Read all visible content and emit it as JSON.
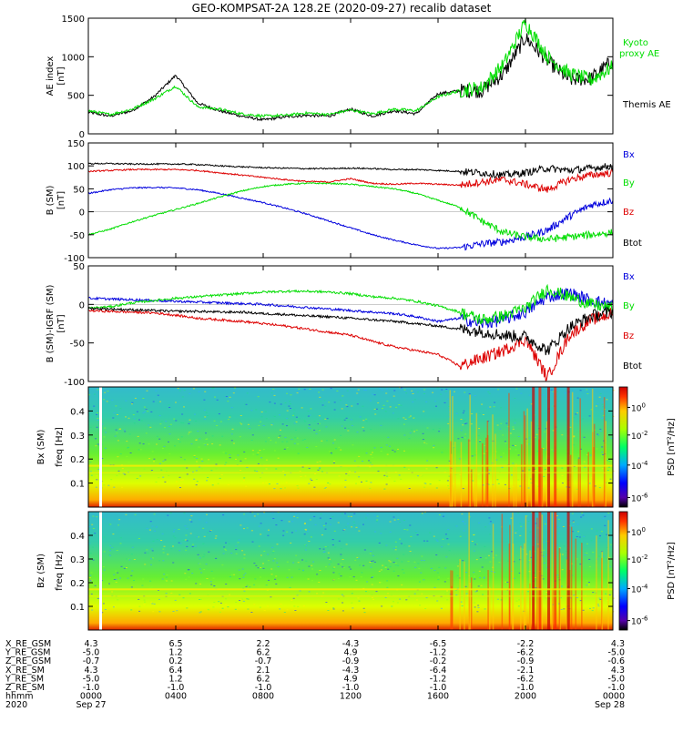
{
  "title": "GEO-KOMPSAT-2A 128.2E (2020-09-27) recalib dataset",
  "chart_data": [
    {
      "type": "line",
      "ylabel": "AE index [nT]",
      "ylim": [
        0,
        1500
      ],
      "yticks": [
        0,
        500,
        1000,
        1500
      ],
      "x_hours": [
        0,
        1,
        2,
        3,
        4,
        5,
        6,
        7,
        8,
        9,
        10,
        11,
        12,
        13,
        14,
        15,
        16,
        17,
        18,
        19,
        20,
        21,
        22,
        23,
        24
      ],
      "series": [
        {
          "name": "Themis AE",
          "color": "#000000",
          "values": [
            280,
            230,
            300,
            480,
            760,
            400,
            300,
            230,
            180,
            220,
            240,
            230,
            320,
            230,
            300,
            260,
            520,
            560,
            560,
            780,
            1250,
            950,
            700,
            720,
            950
          ]
        },
        {
          "name": "Kyoto proxy AE",
          "color": "#00dd00",
          "values": [
            300,
            250,
            320,
            450,
            620,
            350,
            320,
            260,
            230,
            240,
            270,
            250,
            310,
            260,
            320,
            300,
            480,
            560,
            600,
            900,
            1450,
            1000,
            780,
            700,
            870
          ]
        }
      ]
    },
    {
      "type": "line",
      "ylabel": "B (SM) [nT]",
      "ylim": [
        -100,
        150
      ],
      "yticks": [
        -100,
        -50,
        0,
        50,
        100,
        150
      ],
      "x_hours": [
        0,
        1,
        2,
        3,
        4,
        5,
        6,
        7,
        8,
        9,
        10,
        11,
        12,
        13,
        14,
        15,
        16,
        17,
        18,
        19,
        20,
        21,
        22,
        23,
        24
      ],
      "series": [
        {
          "name": "Bx",
          "color": "#0000dd",
          "values": [
            40,
            48,
            52,
            53,
            52,
            48,
            40,
            30,
            20,
            8,
            -5,
            -20,
            -35,
            -50,
            -62,
            -72,
            -80,
            -78,
            -70,
            -65,
            -55,
            -40,
            -10,
            15,
            25
          ]
        },
        {
          "name": "By",
          "color": "#00dd00",
          "values": [
            -50,
            -38,
            -22,
            -8,
            5,
            18,
            32,
            45,
            55,
            60,
            62,
            62,
            60,
            55,
            50,
            40,
            25,
            10,
            -20,
            -45,
            -55,
            -60,
            -55,
            -50,
            -45
          ]
        },
        {
          "name": "Bz",
          "color": "#dd0000",
          "values": [
            88,
            90,
            92,
            92,
            92,
            90,
            85,
            80,
            75,
            70,
            66,
            65,
            72,
            62,
            60,
            62,
            60,
            58,
            65,
            70,
            60,
            48,
            70,
            80,
            85
          ]
        },
        {
          "name": "Btot",
          "color": "#000000",
          "values": [
            105,
            105,
            104,
            104,
            104,
            103,
            100,
            98,
            96,
            95,
            94,
            94,
            95,
            94,
            92,
            92,
            90,
            88,
            85,
            80,
            85,
            95,
            90,
            95,
            100
          ]
        }
      ]
    },
    {
      "type": "line",
      "ylabel": "B (SM)-IGRF (SM) [nT]",
      "ylim": [
        -100,
        50
      ],
      "yticks": [
        -100,
        -50,
        0,
        50
      ],
      "x_hours": [
        0,
        1,
        2,
        3,
        4,
        5,
        6,
        7,
        8,
        9,
        10,
        11,
        12,
        13,
        14,
        15,
        16,
        17,
        18,
        19,
        20,
        21,
        22,
        23,
        24
      ],
      "series": [
        {
          "name": "Bx",
          "color": "#0000dd",
          "values": [
            8,
            7,
            6,
            5,
            4,
            3,
            2,
            1,
            0,
            -2,
            -4,
            -6,
            -8,
            -10,
            -12,
            -16,
            -22,
            -18,
            -25,
            -20,
            -10,
            10,
            15,
            5,
            0
          ]
        },
        {
          "name": "By",
          "color": "#00dd00",
          "values": [
            -5,
            -3,
            2,
            5,
            8,
            10,
            12,
            14,
            16,
            17,
            17,
            16,
            14,
            10,
            8,
            4,
            -2,
            -10,
            -20,
            -15,
            -5,
            20,
            10,
            0,
            -5
          ]
        },
        {
          "name": "Bz",
          "color": "#dd0000",
          "values": [
            -8,
            -9,
            -10,
            -11,
            -14,
            -18,
            -20,
            -22,
            -25,
            -28,
            -32,
            -36,
            -40,
            -48,
            -55,
            -60,
            -65,
            -80,
            -70,
            -60,
            -45,
            -95,
            -40,
            -20,
            -12
          ]
        },
        {
          "name": "Btot",
          "color": "#000000",
          "values": [
            -5,
            -6,
            -7,
            -8,
            -9,
            -9,
            -10,
            -10,
            -12,
            -13,
            -15,
            -16,
            -18,
            -20,
            -22,
            -25,
            -28,
            -32,
            -35,
            -40,
            -42,
            -60,
            -30,
            -15,
            -10
          ]
        }
      ]
    },
    {
      "type": "heatmap",
      "ylabel": "Bx (SM) freq [Hz]",
      "yticks": [
        0.1,
        0.2,
        0.3,
        0.4
      ],
      "colorbar_label": "PSD [nT²/Hz]",
      "colorbar_ticks": [
        "10^0",
        "10^-2",
        "10^-4",
        "10^-6"
      ]
    },
    {
      "type": "heatmap",
      "ylabel": "Bz (SM) freq [Hz]",
      "yticks": [
        0.1,
        0.2,
        0.3,
        0.4
      ],
      "colorbar_label": "PSD [nT²/Hz]",
      "colorbar_ticks": [
        "10^0",
        "10^-2",
        "10^-4",
        "10^-6"
      ]
    }
  ],
  "legends": {
    "ae": {
      "kyoto": "Kyoto\nproxy AE",
      "themis": "Themis AE"
    },
    "b": [
      "Bx",
      "By",
      "Bz",
      "Btot"
    ]
  },
  "ephemeris": {
    "row_labels": [
      "X_RE_GSM",
      "Y_RE_GSM",
      "Z_RE_GSM",
      "X_RE_SM",
      "Y_RE_SM",
      "Z_RE_SM",
      "hhmm",
      "2020"
    ],
    "columns": [
      [
        "4.3",
        "-5.0",
        "-0.7",
        "4.3",
        "-5.0",
        "-1.0",
        "0000",
        "Sep 27"
      ],
      [
        "6.5",
        "1.2",
        "0.2",
        "6.4",
        "1.2",
        "-1.0",
        "0400",
        ""
      ],
      [
        "2.2",
        "6.2",
        "-0.7",
        "2.1",
        "6.2",
        "-1.0",
        "0800",
        ""
      ],
      [
        "-4.3",
        "4.9",
        "-0.9",
        "-4.3",
        "4.9",
        "-1.0",
        "1200",
        ""
      ],
      [
        "-6.5",
        "-1.2",
        "-0.2",
        "-6.4",
        "-1.2",
        "-1.0",
        "1600",
        ""
      ],
      [
        "-2.2",
        "-6.2",
        "-0.9",
        "-2.1",
        "-6.2",
        "-1.0",
        "2000",
        ""
      ],
      [
        "4.3",
        "-5.0",
        "-0.6",
        "4.3",
        "-5.0",
        "-1.0",
        "0000",
        "Sep 28"
      ]
    ]
  }
}
